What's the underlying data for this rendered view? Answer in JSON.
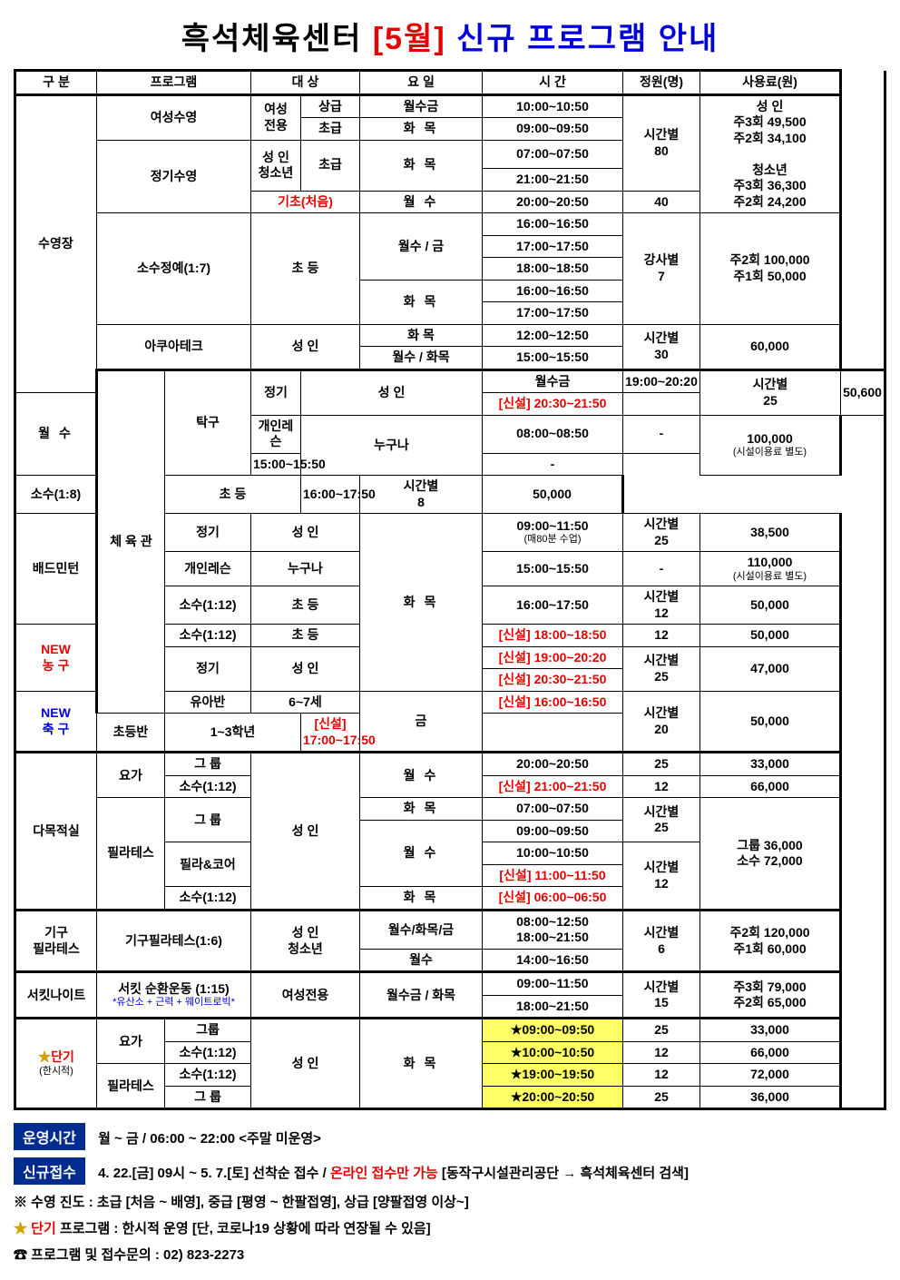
{
  "title": [
    "흑석체육센터 ",
    "[5월]",
    " 신규 프로그램 안내"
  ],
  "headers": [
    "구  분",
    "프로그램",
    "대  상",
    "요  일",
    "시  간",
    "정원(명)",
    "사용료(원)"
  ],
  "col_widths": [
    "90px",
    "75px",
    "95px",
    "55px",
    "65px",
    "135px",
    "155px",
    "85px",
    "155px"
  ],
  "rows": [
    {
      "c1": {
        "t": "수영장",
        "rs": 13
      },
      "c2": {
        "t": "여성수영",
        "rs": 2,
        "cs": 2
      },
      "c3": {
        "t": "여성\n전용",
        "rs": 2
      },
      "c4": {
        "t": "상급"
      },
      "c5": {
        "t": "월수금"
      },
      "c6": {
        "t": "10:00~10:50"
      },
      "c7": {
        "t": "시간별\n80",
        "rs": 4
      },
      "c8": {
        "t": "성 인\n주3회 49,500\n주2회 34,100\n\n청소년\n주3회 36,300\n주2회 24,200",
        "rs": 5
      }
    },
    {
      "c4": {
        "t": "초급"
      },
      "c5": {
        "t": "화 목",
        "ls": 1
      },
      "c6": {
        "t": "09:00~09:50"
      }
    },
    {
      "c2": {
        "t": "정기수영",
        "rs": 3,
        "cs": 2
      },
      "c3": {
        "t": "성 인\n청소년",
        "rs": 2
      },
      "c4": {
        "t": "초급",
        "rs": 2
      },
      "c5": {
        "t": "화 목",
        "rs": 2,
        "ls": 1
      },
      "c6": {
        "t": "07:00~07:50"
      }
    },
    {
      "c6": {
        "t": "21:00~21:50"
      }
    },
    {
      "c3": {
        "t": "기초(처음)",
        "cls": "red",
        "cs": 2
      },
      "c5": {
        "t": "월 수",
        "ls": 1
      },
      "c6": {
        "t": "20:00~20:50"
      },
      "c7": {
        "t": "40"
      }
    },
    {
      "c2": {
        "t": "소수정예(1:7)",
        "rs": 5,
        "cs": 2
      },
      "c3": {
        "t": "초  등",
        "rs": 5,
        "cs": 2
      },
      "c5": {
        "t": "월수 / 금",
        "rs": 3
      },
      "c6": {
        "t": "16:00~16:50"
      },
      "c7": {
        "t": "강사별\n7",
        "rs": 5
      },
      "c8": {
        "t": "주2회 100,000\n주1회   50,000",
        "rs": 5
      }
    },
    {
      "c6": {
        "t": "17:00~17:50"
      }
    },
    {
      "c6": {
        "t": "18:00~18:50"
      }
    },
    {
      "c5": {
        "t": "화 목",
        "rs": 2,
        "ls": 1
      },
      "c6": {
        "t": "16:00~16:50"
      }
    },
    {
      "c6": {
        "t": "17:00~17:50"
      }
    },
    {
      "c2": {
        "t": "아쿠아테크",
        "rs": 2,
        "cs": 2
      },
      "c3": {
        "t": "성  인",
        "rs": 2,
        "cs": 2
      },
      "c5": {
        "t": "화  목"
      },
      "c6": {
        "t": "12:00~12:50"
      },
      "c7": {
        "t": "시간별\n30",
        "rs": 2
      },
      "c8": {
        "t": "60,000",
        "rs": 2
      }
    },
    {
      "c5": {
        "t": "월수 / 화목"
      },
      "c6": {
        "t": "15:00~15:50"
      }
    },
    {
      "sep": 1,
      "c1": {
        "t": "체 육 관",
        "rs": 12
      },
      "c2": {
        "t": "탁구",
        "rs": 4
      },
      "c3": {
        "t": "정기",
        "rs": 2
      },
      "c4": {
        "t": "성  인",
        "rs": 2,
        "cs": 2
      },
      "c5": {
        "t": "월수금"
      },
      "c6": {
        "t": "19:00~20:20"
      },
      "c7": {
        "t": "시간별\n25",
        "rs": 2
      },
      "c8": {
        "t": "50,600",
        "rs": 2
      }
    },
    {
      "c5": {
        "t": "월 수",
        "rs": 3,
        "ls": 1
      },
      "c6": {
        "t": "[신설] 20:30~21:50",
        "cls": "red"
      }
    },
    {
      "c3": {
        "t": "개인레슨"
      },
      "c4": {
        "t": "누구나",
        "rs": 2,
        "cs": 2
      },
      "c6": {
        "t": "08:00~08:50"
      },
      "c7": {
        "t": "-"
      },
      "c8": {
        "t": "100,000",
        "sub": "(시설이용료 별도)",
        "rs": 2
      }
    },
    {
      "c6": {
        "t": "15:00~15:50"
      },
      "c7": {
        "t": "-"
      }
    },
    {
      "c3": {
        "t": "소수(1:8)"
      },
      "c4": {
        "t": "초  등",
        "cs": 2
      },
      "c6": {
        "t": "16:00~17:50"
      },
      "c7": {
        "t": "시간별\n8"
      },
      "c8": {
        "t": "50,000"
      }
    },
    {
      "c2": {
        "t": "배드민턴",
        "rs": 3
      },
      "c3": {
        "t": "정기"
      },
      "c4": {
        "t": "성  인",
        "cs": 2
      },
      "c5": {
        "t": "화 목",
        "rs": 6,
        "ls": 1
      },
      "c6": {
        "t": "09:00~11:50",
        "sub": "(매80분 수업)"
      },
      "c7": {
        "t": "시간별\n25"
      },
      "c8": {
        "t": "38,500"
      }
    },
    {
      "c3": {
        "t": "개인레슨"
      },
      "c4": {
        "t": "누구나",
        "cs": 2
      },
      "c6": {
        "t": "15:00~15:50"
      },
      "c7": {
        "t": "-"
      },
      "c8": {
        "t": "110,000",
        "sub": "(시설이용료 별도)"
      }
    },
    {
      "c3": {
        "t": "소수(1:12)"
      },
      "c4": {
        "t": "초  등",
        "cs": 2
      },
      "c6": {
        "t": "16:00~17:50"
      },
      "c7": {
        "t": "시간별\n12"
      },
      "c8": {
        "t": "50,000"
      }
    },
    {
      "c2": {
        "t": "NEW\n농 구",
        "rs": 3,
        "cls": "red"
      },
      "c3": {
        "t": "소수(1:12)"
      },
      "c4": {
        "t": "초  등",
        "cs": 2
      },
      "c6": {
        "t": "[신설] 18:00~18:50",
        "cls": "red"
      },
      "c7": {
        "t": "12"
      },
      "c8": {
        "t": "50,000"
      }
    },
    {
      "c3": {
        "t": "정기",
        "rs": 2
      },
      "c4": {
        "t": "성  인",
        "rs": 2,
        "cs": 2
      },
      "c6": {
        "t": "[신설] 19:00~20:20",
        "cls": "red"
      },
      "c7": {
        "t": "시간별\n25",
        "rs": 2
      },
      "c8": {
        "t": "47,000",
        "rs": 2
      }
    },
    {
      "c6": {
        "t": "[신설] 20:30~21:50",
        "cls": "red"
      }
    },
    {
      "c2": {
        "t": "NEW\n축 구",
        "rs": 2,
        "cls": "blue"
      },
      "c3": {
        "t": "유아반"
      },
      "c4": {
        "t": "6~7세",
        "cs": 2
      },
      "c5": {
        "t": "금",
        "rs": 2
      },
      "c6": {
        "t": "[신설] 16:00~16:50",
        "cls": "red"
      },
      "c7": {
        "t": "시간별\n20",
        "rs": 2
      },
      "c8": {
        "t": "50,000",
        "rs": 2
      }
    },
    {
      "c3": {
        "t": "초등반"
      },
      "c4": {
        "t": "1~3학년",
        "cs": 2
      },
      "c6": {
        "t": "[신설] 17:00~17:50",
        "cls": "red"
      }
    },
    {
      "sep": 1,
      "c1": {
        "t": "다목적실",
        "rs": 7
      },
      "c2": {
        "t": "요가",
        "rs": 2
      },
      "c3": {
        "t": "그 룹"
      },
      "c4": {
        "t": "성  인",
        "rs": 7,
        "cs": 2
      },
      "c5": {
        "t": "월 수",
        "rs": 2,
        "ls": 1
      },
      "c6": {
        "t": "20:00~20:50"
      },
      "c7": {
        "t": "25"
      },
      "c8": {
        "t": "33,000"
      }
    },
    {
      "c3": {
        "t": "소수(1:12)"
      },
      "c6": {
        "t": "[신설] 21:00~21:50",
        "cls": "red"
      },
      "c7": {
        "t": "12"
      },
      "c8": {
        "t": "66,000"
      }
    },
    {
      "c2": {
        "t": "필라테스",
        "rs": 5
      },
      "c3": {
        "t": "그 룹",
        "rs": 2
      },
      "c5": {
        "t": "화 목",
        "ls": 1
      },
      "c6": {
        "t": "07:00~07:50"
      },
      "c7": {
        "t": "시간별\n25",
        "rs": 2
      },
      "c8": {
        "t": "그룹 36,000\n소수 72,000",
        "rs": 5
      }
    },
    {
      "c5": {
        "t": "월 수",
        "rs": 3,
        "ls": 1
      },
      "c6": {
        "t": "09:00~09:50"
      }
    },
    {
      "c3": {
        "t": "필라&코어",
        "rs": 2
      },
      "c6": {
        "t": "10:00~10:50"
      },
      "c7": {
        "t": "시간별\n12",
        "rs": 3
      }
    },
    {
      "c6": {
        "t": "[신설] 11:00~11:50",
        "cls": "red"
      }
    },
    {
      "c3": {
        "t": "소수(1:12)"
      },
      "c5": {
        "t": "화 목",
        "ls": 1
      },
      "c6": {
        "t": "[신설] 06:00~06:50",
        "cls": "red"
      }
    },
    {
      "sep": 1,
      "c1": {
        "t": "기구\n필라테스",
        "rs": 2
      },
      "c2": {
        "t": "기구필라테스(1:6)",
        "rs": 2,
        "cs": 2
      },
      "c3": {
        "t": "성 인\n청소년",
        "rs": 2,
        "cs": 2
      },
      "c5": {
        "t": "월수/화목/금"
      },
      "c6": {
        "t": "08:00~12:50\n18:00~21:50"
      },
      "c7": {
        "t": "시간별\n6",
        "rs": 2
      },
      "c8": {
        "t": "주2회 120,000\n주1회   60,000",
        "rs": 2
      }
    },
    {
      "c5": {
        "t": "월수"
      },
      "c6": {
        "t": "14:00~16:50"
      }
    },
    {
      "sep": 1,
      "c1": {
        "t": "서킷나이트",
        "rs": 2
      },
      "c2": {
        "t": "서킷 순환운동 (1:15)",
        "sub": "*유산소 + 근력 + 웨이트로빅*",
        "subcls": "blue",
        "rs": 2,
        "cs": 2
      },
      "c3": {
        "t": "여성전용",
        "rs": 2,
        "cs": 2
      },
      "c5": {
        "t": "월수금 / 화목",
        "rs": 2
      },
      "c6": {
        "t": "09:00~11:50"
      },
      "c7": {
        "t": "시간별\n15",
        "rs": 2
      },
      "c8": {
        "t": "주3회 79,000\n주2회 65,000",
        "rs": 2
      }
    },
    {
      "c6": {
        "t": "18:00~21:50"
      }
    },
    {
      "sep": 1,
      "c1": {
        "t": "★단기",
        "sub": "(한시적)",
        "rs": 4,
        "cls": "star"
      },
      "c2": {
        "t": "요가",
        "rs": 2
      },
      "c3": {
        "t": "그룹"
      },
      "c4": {
        "t": "성  인",
        "rs": 4,
        "cs": 2
      },
      "c5": {
        "t": "화 목",
        "rs": 4,
        "ls": 1
      },
      "c6": {
        "t": "★09:00~09:50",
        "cls": "star-time"
      },
      "c7": {
        "t": "25"
      },
      "c8": {
        "t": "33,000"
      }
    },
    {
      "c3": {
        "t": "소수(1:12)"
      },
      "c6": {
        "t": "★10:00~10:50",
        "cls": "star-time"
      },
      "c7": {
        "t": "12"
      },
      "c8": {
        "t": "66,000"
      }
    },
    {
      "c2": {
        "t": "필라테스",
        "rs": 2
      },
      "c3": {
        "t": "소수(1:12)"
      },
      "c6": {
        "t": "★19:00~19:50",
        "cls": "star-time"
      },
      "c7": {
        "t": "12"
      },
      "c8": {
        "t": "72,000"
      }
    },
    {
      "c3": {
        "t": "그  룹"
      },
      "c6": {
        "t": "★20:00~20:50",
        "cls": "star-time"
      },
      "c7": {
        "t": "25"
      },
      "c8": {
        "t": "36,000"
      }
    }
  ],
  "footer": {
    "hours_label": "운영시간",
    "hours": "월 ~ 금 / 06:00 ~ 22:00   <주말 미운영>",
    "reg_label": "신규접수",
    "reg1": "4. 22.[금] 09시 ~ 5. 7.[토] 선착순 접수 / ",
    "reg2": "온라인 접수만 가능",
    "reg3": " [동작구시설관리공단 → 흑석체육센터 검색]",
    "note1": "※ 수영 진도 : 초급 [처음 ~ 배영], 중급 [평영 ~ 한팔접영], 상급 [양팔접영 이상~]",
    "note2a": "★ ",
    "note2b": "단기",
    "note2c": " 프로그램 : 한시적 운영 [단, 코로나19 상황에 따라 연장될 수 있음]",
    "note3": "☎ 프로그램 및 접수문의 : 02) 823-2273"
  }
}
